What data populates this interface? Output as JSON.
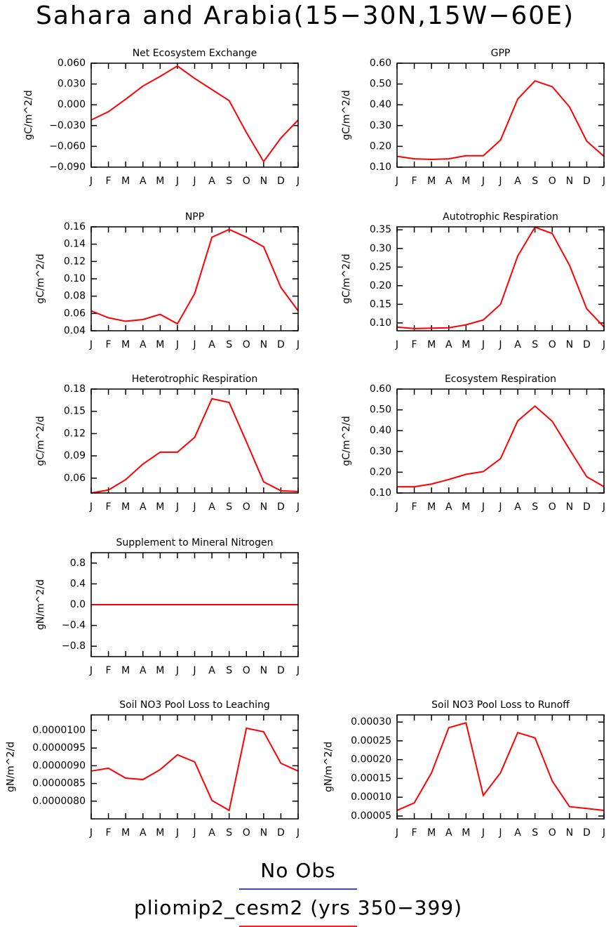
{
  "title": "Sahara and Arabia(15−30N,15W−60E)",
  "legend": [
    {
      "name": "No Obs",
      "color": "#4040ff"
    },
    {
      "name": "pliomip2_cesm2 (yrs 350−399)",
      "color": "#ff2020"
    }
  ],
  "chart_data": [
    {
      "type": "line",
      "title": "Net Ecosystem Exchange",
      "ylabel": "gC/m^2/d",
      "color": "#ff0000",
      "categories": [
        "J",
        "F",
        "M",
        "A",
        "M",
        "J",
        "J",
        "A",
        "S",
        "O",
        "N",
        "D",
        "J"
      ],
      "values": [
        -0.022,
        -0.01,
        0.008,
        0.027,
        0.041,
        0.056,
        0.038,
        0.022,
        0.006,
        -0.04,
        -0.082,
        -0.048,
        -0.022
      ],
      "ylim": [
        -0.09,
        0.06
      ],
      "yticks": [
        {
          "value": -0.09,
          "label": "−0.090"
        },
        {
          "value": -0.06,
          "label": "−0.060"
        },
        {
          "value": -0.03,
          "label": "−0.030"
        },
        {
          "value": 0,
          "label": "0.000"
        },
        {
          "value": 0.03,
          "label": "0.030"
        },
        {
          "value": 0.06,
          "label": "0.060"
        }
      ]
    },
    {
      "type": "line",
      "title": "GPP",
      "ylabel": "gC/m^2/d",
      "color": "#ff0000",
      "categories": [
        "J",
        "F",
        "M",
        "A",
        "M",
        "J",
        "J",
        "A",
        "S",
        "O",
        "N",
        "D",
        "J"
      ],
      "values": [
        0.152,
        0.14,
        0.137,
        0.14,
        0.155,
        0.155,
        0.23,
        0.428,
        0.515,
        0.487,
        0.39,
        0.225,
        0.152
      ],
      "ylim": [
        0.1,
        0.6
      ],
      "yticks": [
        {
          "value": 0.1,
          "label": "0.10"
        },
        {
          "value": 0.2,
          "label": "0.20"
        },
        {
          "value": 0.3,
          "label": "0.30"
        },
        {
          "value": 0.4,
          "label": "0.40"
        },
        {
          "value": 0.5,
          "label": "0.50"
        },
        {
          "value": 0.6,
          "label": "0.60"
        }
      ]
    },
    {
      "type": "line",
      "title": "NPP",
      "ylabel": "gC/m^2/d",
      "color": "#ff0000",
      "categories": [
        "J",
        "F",
        "M",
        "A",
        "M",
        "J",
        "J",
        "A",
        "S",
        "O",
        "N",
        "D",
        "J"
      ],
      "values": [
        0.063,
        0.055,
        0.051,
        0.053,
        0.059,
        0.048,
        0.083,
        0.148,
        0.157,
        0.148,
        0.137,
        0.09,
        0.063
      ],
      "ylim": [
        0.04,
        0.16
      ],
      "yticks": [
        {
          "value": 0.04,
          "label": "0.04"
        },
        {
          "value": 0.06,
          "label": "0.06"
        },
        {
          "value": 0.08,
          "label": "0.08"
        },
        {
          "value": 0.1,
          "label": "0.10"
        },
        {
          "value": 0.12,
          "label": "0.12"
        },
        {
          "value": 0.14,
          "label": "0.14"
        },
        {
          "value": 0.16,
          "label": "0.16"
        }
      ]
    },
    {
      "type": "line",
      "title": "Autotrophic Respiration",
      "ylabel": "gC/m^2/d",
      "color": "#ff0000",
      "categories": [
        "J",
        "F",
        "M",
        "A",
        "M",
        "J",
        "J",
        "A",
        "S",
        "O",
        "N",
        "D",
        "J"
      ],
      "values": [
        0.089,
        0.085,
        0.086,
        0.087,
        0.095,
        0.108,
        0.15,
        0.28,
        0.357,
        0.34,
        0.255,
        0.138,
        0.089
      ],
      "ylim": [
        0.079,
        0.358
      ],
      "yticks": [
        {
          "value": 0.1,
          "label": "0.10"
        },
        {
          "value": 0.15,
          "label": "0.15"
        },
        {
          "value": 0.2,
          "label": "0.20"
        },
        {
          "value": 0.25,
          "label": "0.25"
        },
        {
          "value": 0.3,
          "label": "0.30"
        },
        {
          "value": 0.35,
          "label": "0.35"
        }
      ]
    },
    {
      "type": "line",
      "title": "Heterotrophic Respiration",
      "ylabel": "gC/m^2/d",
      "color": "#ff0000",
      "categories": [
        "J",
        "F",
        "M",
        "A",
        "M",
        "J",
        "J",
        "A",
        "S",
        "O",
        "N",
        "D",
        "J"
      ],
      "values": [
        0.04,
        0.044,
        0.058,
        0.079,
        0.095,
        0.095,
        0.115,
        0.167,
        0.162,
        0.109,
        0.055,
        0.043,
        0.042
      ],
      "ylim": [
        0.04,
        0.18
      ],
      "yticks": [
        {
          "value": 0.06,
          "label": "0.06"
        },
        {
          "value": 0.09,
          "label": "0.09"
        },
        {
          "value": 0.12,
          "label": "0.12"
        },
        {
          "value": 0.15,
          "label": "0.15"
        },
        {
          "value": 0.18,
          "label": "0.18"
        }
      ]
    },
    {
      "type": "line",
      "title": "Ecosystem Respiration",
      "ylabel": "gC/m^2/d",
      "color": "#ff0000",
      "categories": [
        "J",
        "F",
        "M",
        "A",
        "M",
        "J",
        "J",
        "A",
        "S",
        "O",
        "N",
        "D",
        "J"
      ],
      "values": [
        0.13,
        0.13,
        0.143,
        0.165,
        0.19,
        0.203,
        0.265,
        0.447,
        0.518,
        0.445,
        0.31,
        0.178,
        0.13
      ],
      "ylim": [
        0.1,
        0.6
      ],
      "yticks": [
        {
          "value": 0.1,
          "label": "0.10"
        },
        {
          "value": 0.2,
          "label": "0.20"
        },
        {
          "value": 0.3,
          "label": "0.30"
        },
        {
          "value": 0.4,
          "label": "0.40"
        },
        {
          "value": 0.5,
          "label": "0.50"
        },
        {
          "value": 0.6,
          "label": "0.60"
        }
      ]
    },
    {
      "type": "line",
      "title": "Supplement to Mineral Nitrogen",
      "ylabel": "gN/m^2/d",
      "color": "#ff0000",
      "categories": [
        "J",
        "F",
        "M",
        "A",
        "M",
        "J",
        "J",
        "A",
        "S",
        "O",
        "N",
        "D",
        "J"
      ],
      "values": [
        0,
        0,
        0,
        0,
        0,
        0,
        0,
        0,
        0,
        0,
        0,
        0,
        0
      ],
      "ylim": [
        -1,
        1
      ],
      "yticks": [
        {
          "value": -0.8,
          "label": "−0.8"
        },
        {
          "value": -0.4,
          "label": "−0.4"
        },
        {
          "value": 0,
          "label": "0.0"
        },
        {
          "value": 0.4,
          "label": "0.4"
        },
        {
          "value": 0.8,
          "label": "0.8"
        }
      ]
    },
    {
      "type": "line",
      "title": "Soil NO3 Pool Loss to Leaching",
      "ylabel": "gN/m^2/d",
      "color": "#ff0000",
      "categories": [
        "J",
        "F",
        "M",
        "A",
        "M",
        "J",
        "J",
        "A",
        "S",
        "O",
        "N",
        "D",
        "J"
      ],
      "values": [
        8.85e-06,
        8.93e-06,
        8.65e-06,
        8.61e-06,
        8.89e-06,
        9.31e-06,
        9.11e-06,
        8.02e-06,
        7.74e-06,
        1.006e-05,
        9.96e-06,
        9.07e-06,
        8.85e-06
      ],
      "ylim": [
        7.5e-06,
        1.0436e-05
      ],
      "yticks": [
        {
          "value": 8e-06,
          "label": "0.0000080"
        },
        {
          "value": 8.5e-06,
          "label": "0.0000085"
        },
        {
          "value": 9e-06,
          "label": "0.0000090"
        },
        {
          "value": 9.5e-06,
          "label": "0.0000095"
        },
        {
          "value": 1e-05,
          "label": "0.0000100"
        }
      ]
    },
    {
      "type": "line",
      "title": "Soil NO3 Pool Loss to Runoff",
      "ylabel": "gN/m^2/d",
      "color": "#ff0000",
      "categories": [
        "J",
        "F",
        "M",
        "A",
        "M",
        "J",
        "J",
        "A",
        "S",
        "O",
        "N",
        "D",
        "J"
      ],
      "values": [
        6.5e-05,
        8.5e-05,
        0.000165,
        0.000285,
        0.000298,
        0.000105,
        0.000165,
        0.000272,
        0.000258,
        0.000143,
        7.5e-05,
        7e-05,
        6.5e-05
      ],
      "ylim": [
        4.25e-05,
        0.000319
      ],
      "yticks": [
        {
          "value": 5e-05,
          "label": "0.00005"
        },
        {
          "value": 0.0001,
          "label": "0.00010"
        },
        {
          "value": 0.00015,
          "label": "0.00015"
        },
        {
          "value": 0.0002,
          "label": "0.00020"
        },
        {
          "value": 0.00025,
          "label": "0.00025"
        },
        {
          "value": 0.0003,
          "label": "0.00030"
        }
      ]
    }
  ]
}
